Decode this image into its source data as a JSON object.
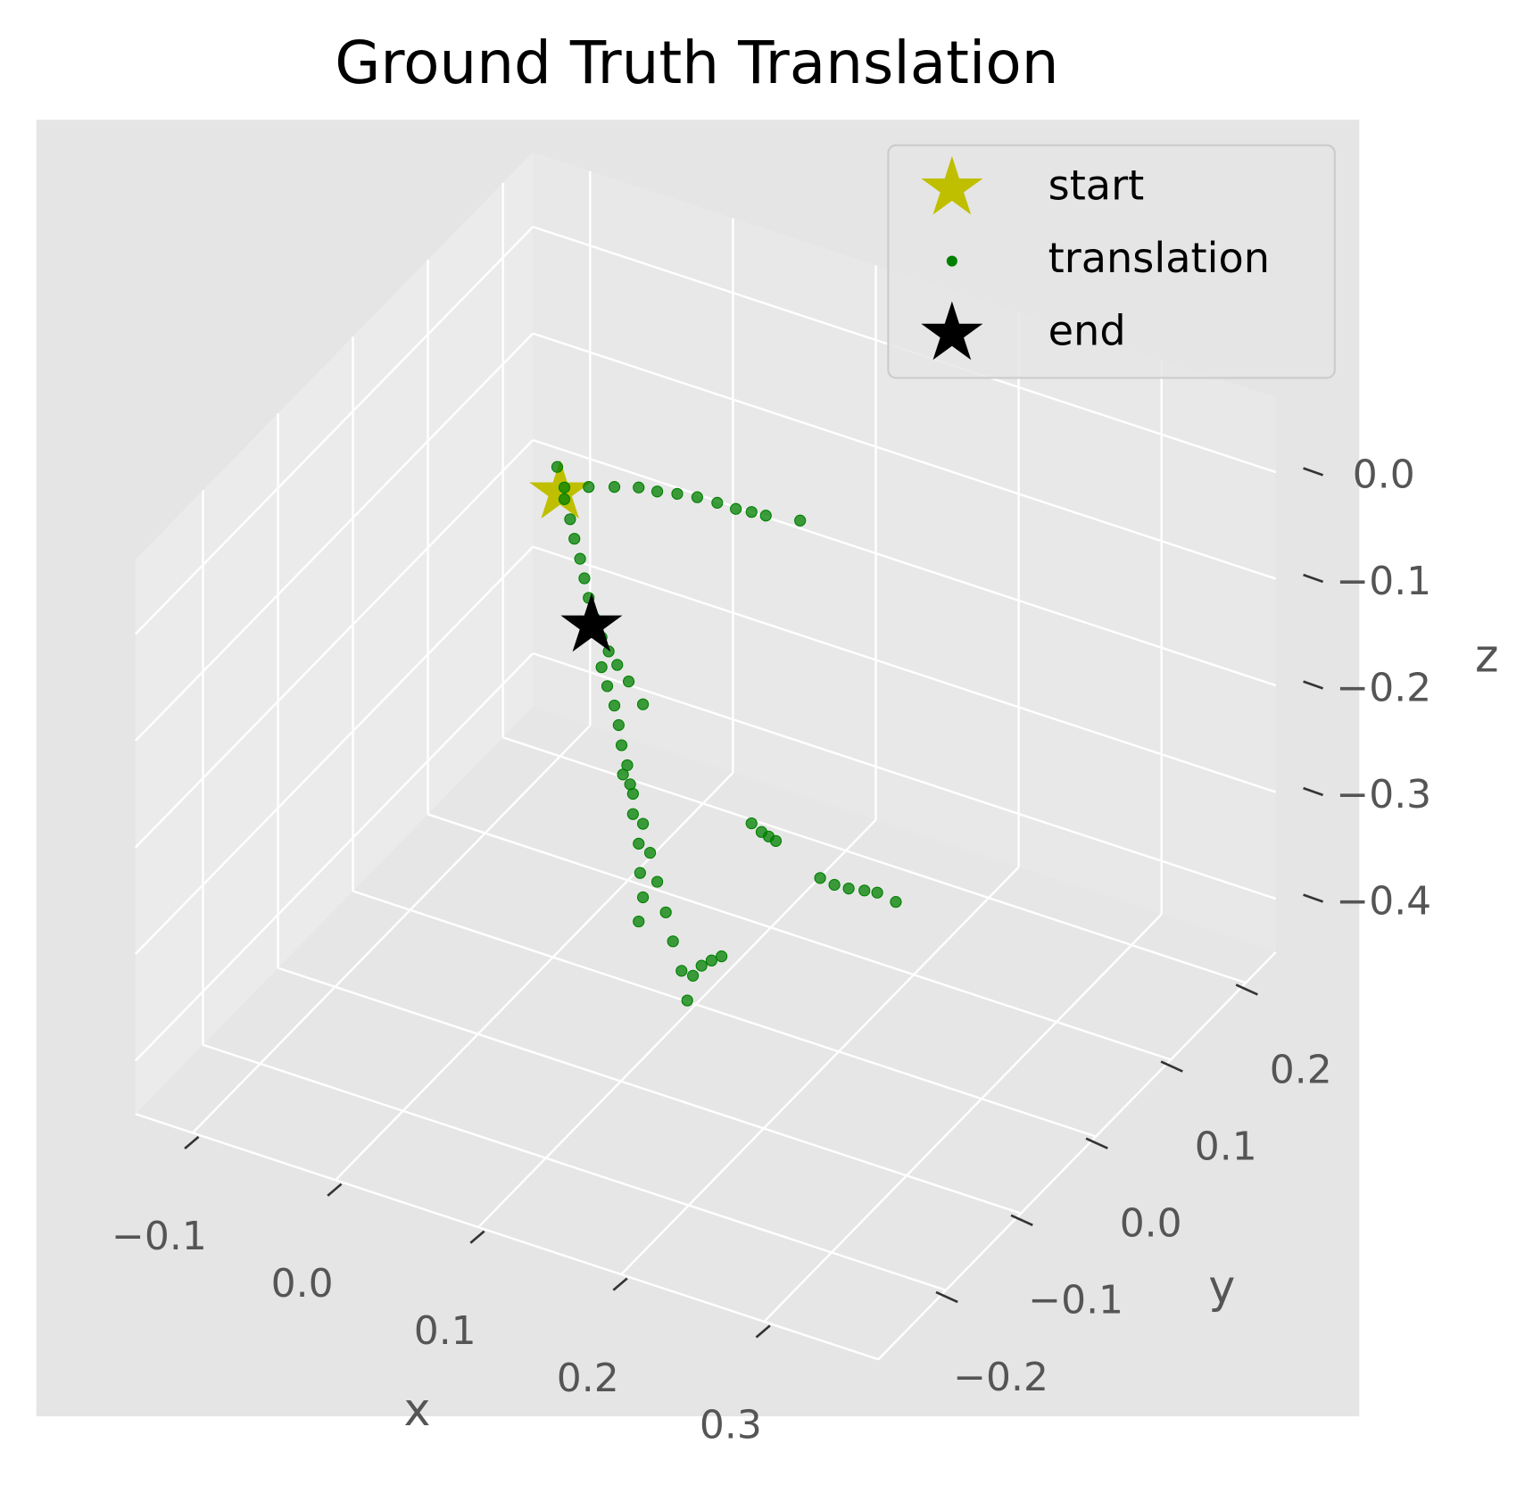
{
  "chart_data": {
    "type": "scatter3d",
    "title": "Ground Truth Translation",
    "xlabel": "x",
    "ylabel": "y",
    "zlabel": "z",
    "xlim": [
      -0.14,
      0.38
    ],
    "ylim": [
      -0.29,
      0.24
    ],
    "zlim": [
      -0.45,
      0.07
    ],
    "xticks": [
      {
        "value": -0.1,
        "label": "−0.1"
      },
      {
        "value": 0,
        "label": "0.0"
      },
      0.1,
      0.2,
      0.3
    ],
    "yticks": [
      {
        "value": -0.2,
        "label": "−0.2"
      },
      {
        "value": -0.1,
        "label": "−0.1"
      },
      {
        "value": 0,
        "label": "0.0"
      },
      0.1,
      0.2
    ],
    "zticks": [
      {
        "value": -0.4,
        "label": "−0.4"
      },
      {
        "value": -0.3,
        "label": "−0.3"
      },
      {
        "value": -0.2,
        "label": "−0.2"
      },
      {
        "value": -0.1,
        "label": "−0.1"
      },
      {
        "value": 0,
        "label": "0.0"
      }
    ],
    "grid": true,
    "legend": "upper right",
    "series": [
      {
        "name": "start",
        "color": "#bfbf00",
        "marker": "star",
        "x": [
          0.005
        ],
        "y": [
          0
        ],
        "z": [
          -0.012
        ]
      },
      {
        "name": "translation",
        "color": "green",
        "marker": "circle",
        "x": [
          0.008,
          0.025,
          0.043,
          0.06,
          0.073,
          0.087,
          0.101,
          0.115,
          0.128,
          0.139,
          0.149,
          0.173,
          0.003,
          0.008,
          0.012,
          0.015,
          0.019,
          0.022,
          0.025,
          0.029,
          0.034,
          0.039,
          0.045,
          0.053,
          0.063,
          0.034,
          0.038,
          0.043,
          0.046,
          0.048,
          0.052,
          0.054,
          0.056,
          0.06,
          0.061,
          0.063,
          0.06,
          0.049,
          0.056,
          0.063,
          0.068,
          0.073,
          0.079,
          0.084,
          0.09,
          0.094,
          0.098,
          0.104,
          0.111,
          0.118,
          0.139,
          0.146,
          0.151,
          0.156,
          0.187,
          0.197,
          0.207,
          0.218,
          0.227,
          0.24
        ],
        "y": [
          0,
          0,
          0,
          0,
          0,
          0,
          0,
          0,
          0,
          0,
          0,
          0,
          0,
          0,
          0,
          0,
          0,
          0,
          0,
          0,
          0,
          0,
          0,
          0,
          0,
          0,
          0,
          0,
          0,
          0,
          0,
          0,
          0,
          0,
          0,
          0,
          0,
          0,
          0,
          0,
          0,
          0,
          0,
          0,
          0,
          0,
          0,
          0,
          0,
          0,
          0,
          0,
          0,
          0,
          0,
          0,
          0,
          0,
          0,
          0
        ],
        "z": [
          -0.006,
          0.002,
          0.01,
          0.017,
          0.019,
          0.023,
          0.026,
          0.027,
          0.027,
          0.029,
          0.03,
          0.036,
          0.011,
          -0.017,
          -0.034,
          -0.051,
          -0.068,
          -0.085,
          -0.102,
          -0.119,
          -0.135,
          -0.146,
          -0.156,
          -0.168,
          -0.185,
          -0.163,
          -0.179,
          -0.195,
          -0.212,
          -0.23,
          -0.247,
          -0.264,
          -0.291,
          -0.317,
          -0.344,
          -0.366,
          -0.39,
          -0.257,
          -0.272,
          -0.297,
          -0.322,
          -0.347,
          -0.373,
          -0.398,
          -0.423,
          -0.449,
          -0.424,
          -0.412,
          -0.404,
          -0.397,
          -0.263,
          -0.268,
          -0.27,
          -0.272,
          -0.293,
          -0.295,
          -0.294,
          -0.291,
          -0.289,
          -0.292
        ]
      },
      {
        "name": "end",
        "color": "black",
        "marker": "star",
        "x": [
          0.027
        ],
        "y": [
          0
        ],
        "z": [
          -0.127
        ]
      }
    ]
  }
}
